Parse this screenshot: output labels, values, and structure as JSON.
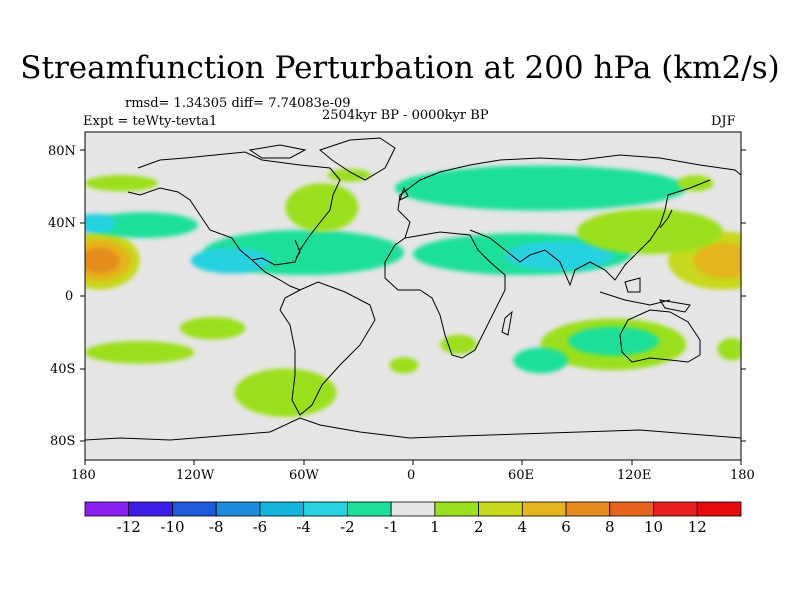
{
  "title": "Streamfunction Perturbation at 200 hPa (km2/s)",
  "stats": "rmsd= 1.34305 diff= 7.74083e-09",
  "experiment": "Expt = teWty-tevta1",
  "period": "2504kyr BP - 0000kyr BP",
  "season": "DJF",
  "y_axis": {
    "ticks": [
      "80N",
      "40N",
      "0",
      "40S",
      "80S"
    ],
    "values": [
      80,
      40,
      0,
      -40,
      -80
    ]
  },
  "x_axis": {
    "ticks": [
      "180",
      "120W",
      "60W",
      "0",
      "60E",
      "120E",
      "180"
    ],
    "values": [
      -180,
      -120,
      -60,
      0,
      60,
      120,
      180
    ]
  },
  "colorbar": {
    "labels": [
      "-12",
      "-10",
      "-8",
      "-6",
      "-4",
      "-2",
      "-1",
      "1",
      "2",
      "4",
      "6",
      "8",
      "10",
      "12"
    ],
    "colors": [
      "#8a1ef0",
      "#3c1ee6",
      "#1e5adc",
      "#1e8cdc",
      "#14b4dc",
      "#28d2e0",
      "#1ee09a",
      "#e6e6e6",
      "#9be01e",
      "#c8d81e",
      "#e6b41e",
      "#e68c1e",
      "#e6641e",
      "#e61e1e",
      "#e60a0a"
    ]
  },
  "field": [
    {
      "lon": -172,
      "lat": 22,
      "rx": 22,
      "ry": 18,
      "level": 9
    },
    {
      "lon": -172,
      "lat": 22,
      "rx": 17,
      "ry": 13,
      "level": 10
    },
    {
      "lon": -172,
      "lat": 22,
      "rx": 11,
      "ry": 8,
      "level": 11
    },
    {
      "lon": 170,
      "lat": 22,
      "rx": 30,
      "ry": 18,
      "level": 9
    },
    {
      "lon": 172,
      "lat": 22,
      "rx": 18,
      "ry": 11,
      "level": 10
    },
    {
      "lon": -60,
      "lat": 27,
      "rx": 55,
      "ry": 14,
      "level": 6
    },
    {
      "lon": -100,
      "lat": 22,
      "rx": 22,
      "ry": 8,
      "level": 5
    },
    {
      "lon": 60,
      "lat": 26,
      "rx": 60,
      "ry": 13,
      "level": 6
    },
    {
      "lon": 80,
      "lat": 25,
      "rx": 30,
      "ry": 9,
      "level": 5
    },
    {
      "lon": 70,
      "lat": 67,
      "rx": 80,
      "ry": 14,
      "level": 6
    },
    {
      "lon": -148,
      "lat": 44,
      "rx": 30,
      "ry": 8,
      "level": 6
    },
    {
      "lon": -175,
      "lat": 45,
      "rx": 12,
      "ry": 6,
      "level": 5
    },
    {
      "lon": -50,
      "lat": 55,
      "rx": 20,
      "ry": 15,
      "level": 8
    },
    {
      "lon": -35,
      "lat": 75,
      "rx": 12,
      "ry": 4,
      "level": 8
    },
    {
      "lon": 130,
      "lat": 40,
      "rx": 40,
      "ry": 14,
      "level": 8
    },
    {
      "lon": 155,
      "lat": 70,
      "rx": 10,
      "ry": 5,
      "level": 8
    },
    {
      "lon": -160,
      "lat": 70,
      "rx": 20,
      "ry": 5,
      "level": 8
    },
    {
      "lon": 110,
      "lat": -30,
      "rx": 40,
      "ry": 16,
      "level": 8
    },
    {
      "lon": 110,
      "lat": -28,
      "rx": 25,
      "ry": 9,
      "level": 6
    },
    {
      "lon": 70,
      "lat": -40,
      "rx": 15,
      "ry": 8,
      "level": 6
    },
    {
      "lon": -110,
      "lat": -20,
      "rx": 18,
      "ry": 7,
      "level": 8
    },
    {
      "lon": -150,
      "lat": -35,
      "rx": 30,
      "ry": 7,
      "level": 8
    },
    {
      "lon": -70,
      "lat": -60,
      "rx": 28,
      "ry": 15,
      "level": 8
    },
    {
      "lon": -5,
      "lat": -43,
      "rx": 8,
      "ry": 5,
      "level": 8
    },
    {
      "lon": 25,
      "lat": -30,
      "rx": 10,
      "ry": 6,
      "level": 8
    },
    {
      "lon": 175,
      "lat": -33,
      "rx": 8,
      "ry": 7,
      "level": 8
    }
  ]
}
